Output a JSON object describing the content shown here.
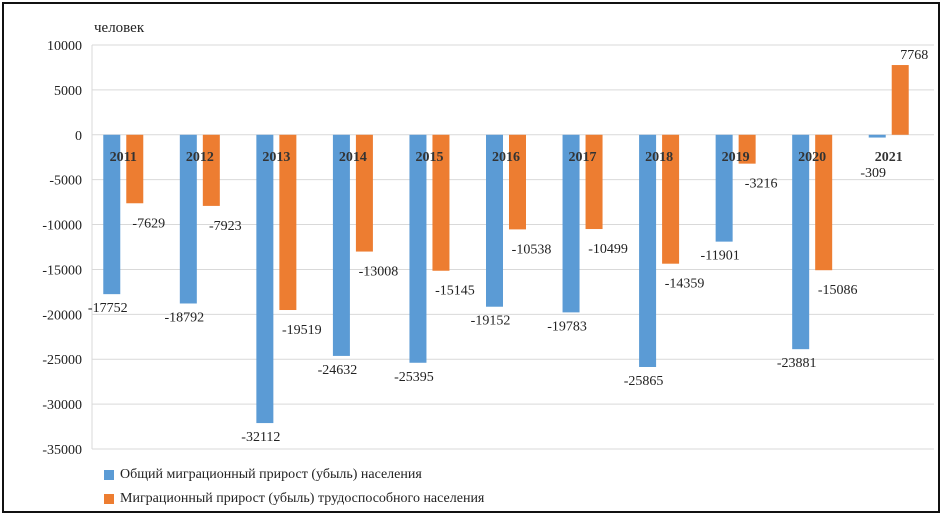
{
  "chart_data": {
    "type": "bar",
    "ylabel": "человек",
    "ylim": [
      -35000,
      10000
    ],
    "yticks": [
      10000,
      5000,
      0,
      -5000,
      -10000,
      -15000,
      -20000,
      -25000,
      -30000,
      -35000
    ],
    "categories": [
      "2011",
      "2012",
      "2013",
      "2014",
      "2015",
      "2016",
      "2017",
      "2018",
      "2019",
      "2020",
      "2021"
    ],
    "series": [
      {
        "name": "Общий миграционный прирост (убыль) населения",
        "color": "#5b9bd5",
        "values": [
          -17752,
          -18792,
          -32112,
          -24632,
          -25395,
          -19152,
          -19783,
          -25865,
          -11901,
          -23881,
          -309
        ]
      },
      {
        "name": "Миграционный прирост (убыль) трудоспособного населения",
        "color": "#ed7d31",
        "values": [
          -7629,
          -7923,
          -19519,
          -13008,
          -15145,
          -10538,
          -10499,
          -14359,
          -3216,
          -15086,
          7768
        ]
      }
    ],
    "grid": true,
    "legend": "bottom-left"
  }
}
